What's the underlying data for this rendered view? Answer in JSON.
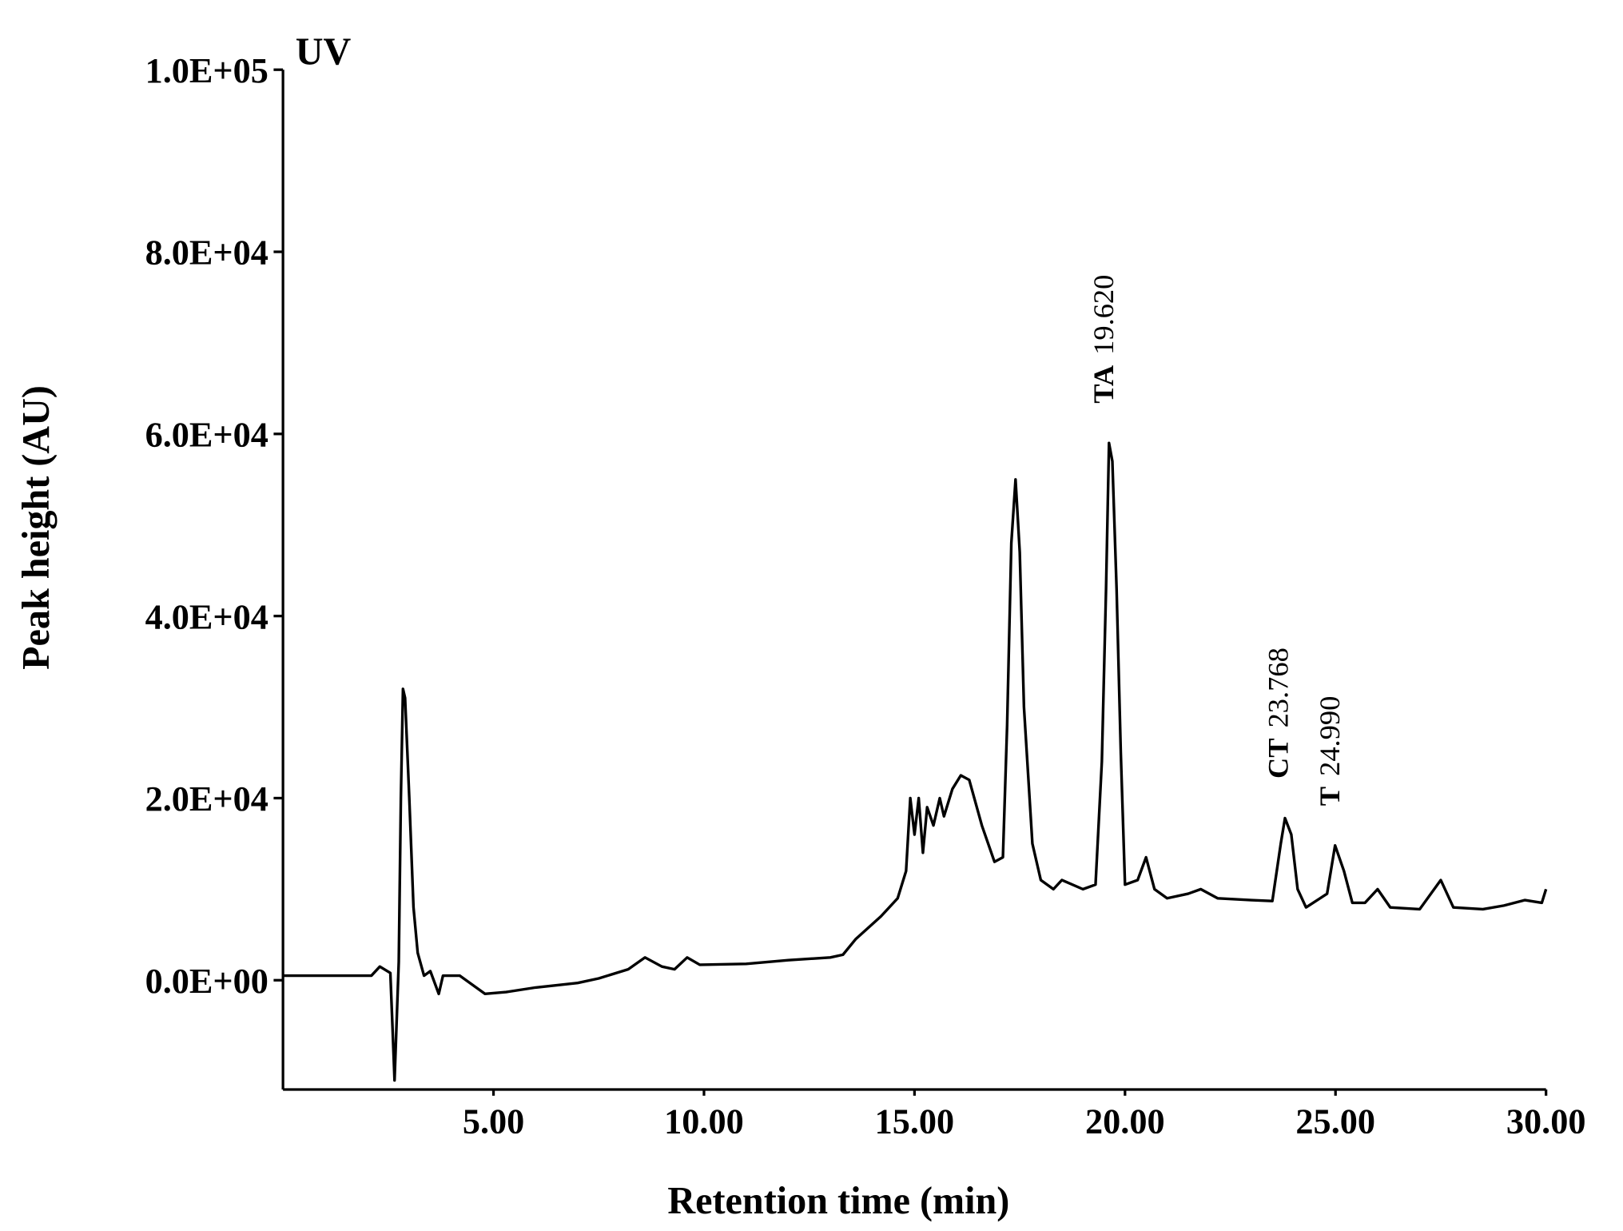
{
  "chart_data": {
    "type": "line",
    "title": "UV",
    "xlabel": "Retention time (min)",
    "ylabel": "Peak height (AU)",
    "color": "#000000",
    "xlim": [
      0,
      30
    ],
    "ylim": [
      -12000,
      100000
    ],
    "xticks": [
      {
        "value": 5,
        "label": "5.00"
      },
      {
        "value": 10,
        "label": "10.00"
      },
      {
        "value": 15,
        "label": "15.00"
      },
      {
        "value": 20,
        "label": "20.00"
      },
      {
        "value": 25,
        "label": "25.00"
      },
      {
        "value": 30,
        "label": "30.00"
      }
    ],
    "yticks": [
      {
        "value": 0,
        "label": "0.0E+00"
      },
      {
        "value": 20000,
        "label": "2.0E+04"
      },
      {
        "value": 40000,
        "label": "4.0E+04"
      },
      {
        "value": 60000,
        "label": "6.0E+04"
      },
      {
        "value": 80000,
        "label": "8.0E+04"
      },
      {
        "value": 100000,
        "label": "1.0E+05"
      }
    ],
    "x": [
      0,
      2.1,
      2.3,
      2.55,
      2.6,
      2.65,
      2.75,
      2.8,
      2.85,
      2.9,
      3.0,
      3.1,
      3.2,
      3.35,
      3.5,
      3.7,
      3.8,
      4.2,
      4.5,
      4.8,
      5.3,
      6.0,
      7.0,
      7.5,
      8.2,
      8.6,
      9.0,
      9.3,
      9.6,
      9.9,
      11,
      12,
      13,
      13.3,
      13.6,
      14.2,
      14.6,
      14.8,
      14.9,
      15.0,
      15.1,
      15.2,
      15.3,
      15.45,
      15.6,
      15.7,
      15.9,
      16.1,
      16.3,
      16.6,
      16.9,
      17.1,
      17.2,
      17.3,
      17.4,
      17.5,
      17.6,
      17.8,
      18.0,
      18.3,
      18.5,
      19.0,
      19.3,
      19.45,
      19.55,
      19.62,
      19.7,
      19.8,
      19.9,
      20.0,
      20.3,
      20.5,
      20.7,
      21.0,
      21.5,
      21.8,
      22.2,
      23.0,
      23.5,
      23.7,
      23.8,
      23.95,
      24.1,
      24.3,
      24.8,
      24.99,
      25.2,
      25.4,
      25.7,
      26.0,
      26.3,
      27.0,
      27.5,
      27.8,
      28.5,
      29.0,
      29.5,
      29.9,
      30.0
    ],
    "values": [
      500,
      500,
      1500,
      800,
      -5000,
      -11000,
      2000,
      20000,
      32000,
      31000,
      20000,
      8000,
      3000,
      500,
      1000,
      -1500,
      500,
      500,
      -500,
      -1500,
      -1300,
      -800,
      -300,
      200,
      1200,
      2500,
      1500,
      1200,
      2500,
      1700,
      1800,
      2200,
      2500,
      2800,
      4500,
      7000,
      9000,
      12000,
      20000,
      16000,
      20000,
      14000,
      19000,
      17000,
      20000,
      18000,
      21000,
      22500,
      22000,
      17000,
      13000,
      13500,
      28000,
      48000,
      55000,
      47000,
      30000,
      15000,
      11000,
      10000,
      11000,
      10000,
      10500,
      24000,
      43000,
      59000,
      57000,
      43000,
      25000,
      10500,
      11000,
      13500,
      10000,
      9000,
      9500,
      10000,
      9000,
      8800,
      8700,
      15000,
      17800,
      16000,
      10000,
      8000,
      9500,
      14800,
      12000,
      8500,
      8500,
      10000,
      8000,
      7800,
      11000,
      8000,
      7800,
      8200,
      8800,
      8500,
      10000
    ],
    "annotations": [
      {
        "name": "TA",
        "time": {
          "value": 19.62,
          "label": "19.620"
        }
      },
      {
        "name": "CT",
        "time": {
          "value": 23.768,
          "label": "23.768"
        }
      },
      {
        "name": "T",
        "time": {
          "value": 24.99,
          "label": "24.990"
        }
      }
    ]
  }
}
